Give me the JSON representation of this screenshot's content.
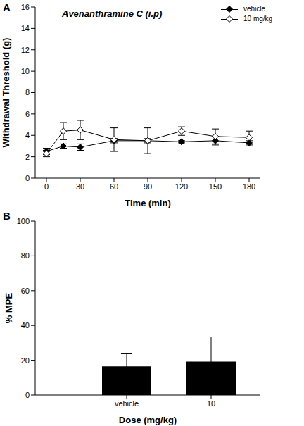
{
  "chart_data": [
    {
      "type": "line",
      "title": "Avenanthramine C (i.p)",
      "annotations": [
        "A"
      ],
      "x_label": "Time (min)",
      "y_label": "Withdrawal Threshold (g)",
      "x": [
        0,
        15,
        30,
        60,
        90,
        120,
        150,
        180
      ],
      "series": [
        {
          "name": "vehicle",
          "color": "#000000",
          "marker": "diamond",
          "values": [
            2.5,
            3.0,
            2.9,
            3.5,
            3.5,
            3.4,
            3.5,
            3.3
          ],
          "errors": [
            0.3,
            0.2,
            0.3,
            0.2,
            0.2,
            0.1,
            0.4,
            0.2
          ]
        },
        {
          "name": "10 mg/kg",
          "color": "#000000",
          "marker": "open_diamond",
          "values": [
            2.3,
            4.4,
            4.5,
            3.6,
            3.5,
            4.4,
            3.9,
            3.8
          ],
          "errors": [
            0.3,
            0.8,
            0.9,
            1.1,
            1.2,
            0.4,
            0.7,
            0.6
          ]
        }
      ],
      "xlim": [
        -10,
        190
      ],
      "xticks": [
        0,
        30,
        60,
        90,
        120,
        150,
        180
      ],
      "ylim": [
        0,
        16
      ],
      "yticks": [
        0,
        2,
        4,
        6,
        8,
        10,
        12,
        14,
        16
      ],
      "legend": "upper right",
      "grid": false
    },
    {
      "type": "bar",
      "annotations": [
        "B"
      ],
      "x_label": "Dose (mg/kg)",
      "y_label": "% MPE",
      "categories": [
        "vehicle",
        "10"
      ],
      "values": [
        16.5,
        19.2
      ],
      "errors": [
        7.2,
        14.2
      ],
      "color": "#000000",
      "ylim": [
        0,
        100
      ],
      "yticks": [
        0,
        20,
        40,
        60,
        80,
        100
      ],
      "grid": false
    }
  ]
}
